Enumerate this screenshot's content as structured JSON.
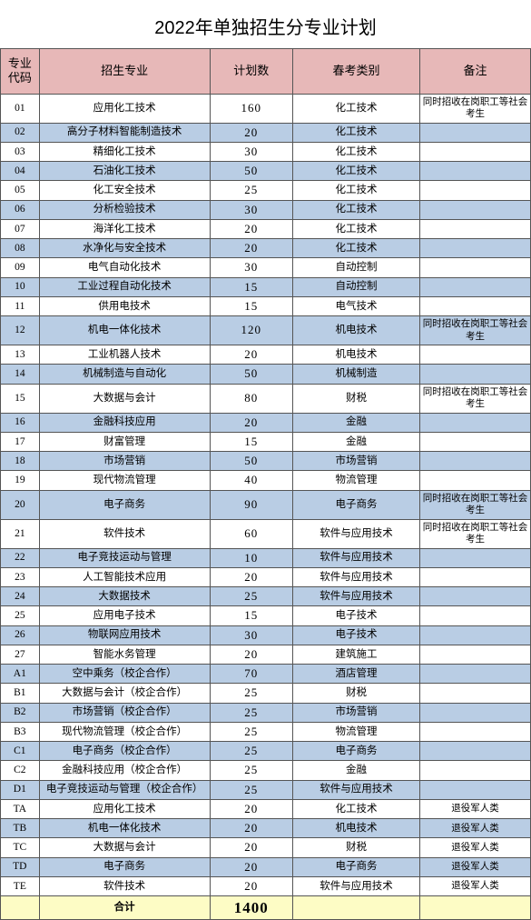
{
  "title": "2022年单独招生分专业计划",
  "colors": {
    "header_bg": "#e7b8b8",
    "alt_bg": "#b9cde4",
    "white_bg": "#ffffff",
    "total_bg": "#fdfcc5",
    "border": "#555555"
  },
  "columns": [
    "专业代码",
    "招生专业",
    "计划数",
    "春考类别",
    "备注"
  ],
  "rows": [
    {
      "code": "01",
      "major": "应用化工技术",
      "plan": "160",
      "cat": "化工技术",
      "note": "同时招收在岗职工等社会考生",
      "tall": true
    },
    {
      "code": "02",
      "major": "高分子材料智能制造技术",
      "plan": "20",
      "cat": "化工技术",
      "note": ""
    },
    {
      "code": "03",
      "major": "精细化工技术",
      "plan": "30",
      "cat": "化工技术",
      "note": ""
    },
    {
      "code": "04",
      "major": "石油化工技术",
      "plan": "50",
      "cat": "化工技术",
      "note": ""
    },
    {
      "code": "05",
      "major": "化工安全技术",
      "plan": "25",
      "cat": "化工技术",
      "note": ""
    },
    {
      "code": "06",
      "major": "分析检验技术",
      "plan": "30",
      "cat": "化工技术",
      "note": ""
    },
    {
      "code": "07",
      "major": "海洋化工技术",
      "plan": "20",
      "cat": "化工技术",
      "note": ""
    },
    {
      "code": "08",
      "major": "水净化与安全技术",
      "plan": "20",
      "cat": "化工技术",
      "note": ""
    },
    {
      "code": "09",
      "major": "电气自动化技术",
      "plan": "30",
      "cat": "自动控制",
      "note": ""
    },
    {
      "code": "10",
      "major": "工业过程自动化技术",
      "plan": "15",
      "cat": "自动控制",
      "note": ""
    },
    {
      "code": "11",
      "major": "供用电技术",
      "plan": "15",
      "cat": "电气技术",
      "note": ""
    },
    {
      "code": "12",
      "major": "机电一体化技术",
      "plan": "120",
      "cat": "机电技术",
      "note": "同时招收在岗职工等社会考生",
      "tall": true
    },
    {
      "code": "13",
      "major": "工业机器人技术",
      "plan": "20",
      "cat": "机电技术",
      "note": ""
    },
    {
      "code": "14",
      "major": "机械制造与自动化",
      "plan": "50",
      "cat": "机械制造",
      "note": ""
    },
    {
      "code": "15",
      "major": "大数据与会计",
      "plan": "80",
      "cat": "财税",
      "note": "同时招收在岗职工等社会考生",
      "tall": true
    },
    {
      "code": "16",
      "major": "金融科技应用",
      "plan": "20",
      "cat": "金融",
      "note": ""
    },
    {
      "code": "17",
      "major": "财富管理",
      "plan": "15",
      "cat": "金融",
      "note": ""
    },
    {
      "code": "18",
      "major": "市场营销",
      "plan": "50",
      "cat": "市场营销",
      "note": ""
    },
    {
      "code": "19",
      "major": "现代物流管理",
      "plan": "40",
      "cat": "物流管理",
      "note": ""
    },
    {
      "code": "20",
      "major": "电子商务",
      "plan": "90",
      "cat": "电子商务",
      "note": "同时招收在岗职工等社会考生",
      "tall": true
    },
    {
      "code": "21",
      "major": "软件技术",
      "plan": "60",
      "cat": "软件与应用技术",
      "note": "同时招收在岗职工等社会考生",
      "tall": true
    },
    {
      "code": "22",
      "major": "电子竞技运动与管理",
      "plan": "10",
      "cat": "软件与应用技术",
      "note": ""
    },
    {
      "code": "23",
      "major": "人工智能技术应用",
      "plan": "20",
      "cat": "软件与应用技术",
      "note": ""
    },
    {
      "code": "24",
      "major": "大数据技术",
      "plan": "25",
      "cat": "软件与应用技术",
      "note": ""
    },
    {
      "code": "25",
      "major": "应用电子技术",
      "plan": "15",
      "cat": "电子技术",
      "note": ""
    },
    {
      "code": "26",
      "major": "物联网应用技术",
      "plan": "30",
      "cat": "电子技术",
      "note": ""
    },
    {
      "code": "27",
      "major": "智能水务管理",
      "plan": "20",
      "cat": "建筑施工",
      "note": ""
    },
    {
      "code": "A1",
      "major": "空中乘务（校企合作）",
      "plan": "70",
      "cat": "酒店管理",
      "note": ""
    },
    {
      "code": "B1",
      "major": "大数据与会计（校企合作）",
      "plan": "25",
      "cat": "财税",
      "note": ""
    },
    {
      "code": "B2",
      "major": "市场营销（校企合作）",
      "plan": "25",
      "cat": "市场营销",
      "note": ""
    },
    {
      "code": "B3",
      "major": "现代物流管理（校企合作）",
      "plan": "25",
      "cat": "物流管理",
      "note": ""
    },
    {
      "code": "C1",
      "major": "电子商务（校企合作）",
      "plan": "25",
      "cat": "电子商务",
      "note": ""
    },
    {
      "code": "C2",
      "major": "金融科技应用（校企合作）",
      "plan": "25",
      "cat": "金融",
      "note": ""
    },
    {
      "code": "D1",
      "major": "电子竞技运动与管理（校企合作）",
      "plan": "25",
      "cat": "软件与应用技术",
      "note": ""
    },
    {
      "code": "TA",
      "major": "应用化工技术",
      "plan": "20",
      "cat": "化工技术",
      "note": "退役军人类"
    },
    {
      "code": "TB",
      "major": "机电一体化技术",
      "plan": "20",
      "cat": "机电技术",
      "note": "退役军人类"
    },
    {
      "code": "TC",
      "major": "大数据与会计",
      "plan": "20",
      "cat": "财税",
      "note": "退役军人类"
    },
    {
      "code": "TD",
      "major": "电子商务",
      "plan": "20",
      "cat": "电子商务",
      "note": "退役军人类"
    },
    {
      "code": "TE",
      "major": "软件技术",
      "plan": "20",
      "cat": "软件与应用技术",
      "note": "退役军人类"
    }
  ],
  "total": {
    "label": "合计",
    "plan": "1400"
  }
}
